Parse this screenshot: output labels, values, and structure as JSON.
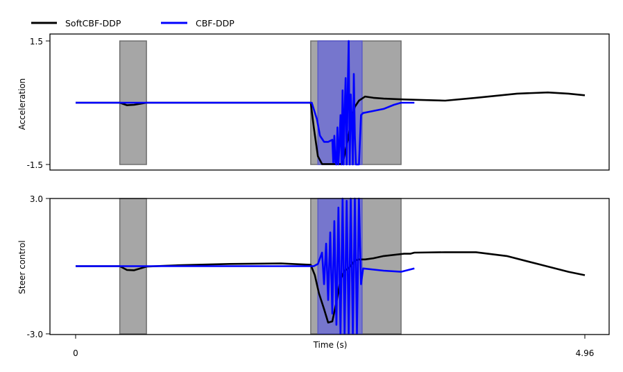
{
  "legend": [
    {
      "label": "SoftCBF-DDP",
      "color": "#000000"
    },
    {
      "label": "CBF-DDP",
      "color": "#0000ff"
    }
  ],
  "colors": {
    "shade_gray": "#a6a6a6",
    "shade_blue": "#6d6dd4",
    "axis": "#000000"
  },
  "chart_data": [
    {
      "type": "line",
      "title": "",
      "xlabel": "",
      "ylabel": "Acceleration",
      "xlim": [
        0,
        4.96
      ],
      "ylim": [
        -1.5,
        1.5
      ],
      "yticks": [
        "1.5",
        "-1.5"
      ],
      "xticks": [],
      "grid": false,
      "legend_position": "top-left, above plot",
      "shaded_regions": [
        {
          "color": "gray",
          "x0": 0.43,
          "x1": 0.69,
          "y0": -1.5,
          "y1": 1.5
        },
        {
          "color": "gray",
          "x0": 2.29,
          "x1": 3.17,
          "y0": -1.5,
          "y1": 1.5
        },
        {
          "color": "blue",
          "x0": 2.36,
          "x1": 2.79,
          "y0": -1.5,
          "y1": 1.5
        }
      ],
      "series": [
        {
          "name": "SoftCBF-DDP",
          "color": "#000000",
          "x": [
            0,
            0.43,
            0.5,
            0.57,
            0.69,
            1.0,
            2.29,
            2.32,
            2.36,
            2.4,
            2.44,
            2.6,
            2.66,
            2.68,
            2.72,
            2.76,
            2.82,
            2.9,
            3.0,
            3.2,
            3.6,
            3.9,
            4.3,
            4.6,
            4.8,
            4.96
          ],
          "y": [
            0,
            0,
            -0.06,
            -0.05,
            0.0,
            0.0,
            0.0,
            -0.6,
            -1.3,
            -1.49,
            -1.49,
            -1.49,
            -0.8,
            -0.45,
            -0.1,
            0.05,
            0.15,
            0.12,
            0.1,
            0.08,
            0.05,
            0.12,
            0.22,
            0.25,
            0.22,
            0.18
          ]
        },
        {
          "name": "CBF-DDP",
          "color": "#0000ff",
          "x": [
            0,
            1.5,
            2.3,
            2.35,
            2.38,
            2.42,
            2.46,
            2.5,
            2.51,
            2.52,
            2.53,
            2.54,
            2.55,
            2.56,
            2.57,
            2.58,
            2.59,
            2.6,
            2.61,
            2.62,
            2.63,
            2.64,
            2.65,
            2.66,
            2.67,
            2.68,
            2.69,
            2.7,
            2.71,
            2.72,
            2.73,
            2.74,
            2.75,
            2.76,
            2.78,
            2.8,
            2.9,
            3.0,
            3.1,
            3.17,
            3.3
          ],
          "y": [
            0,
            0.0,
            0.0,
            -0.4,
            -0.8,
            -0.95,
            -0.95,
            -0.9,
            -1.45,
            -0.8,
            -1.45,
            -1.5,
            -0.6,
            -1.5,
            -1.0,
            -0.3,
            -1.5,
            0.3,
            -1.5,
            -0.2,
            0.6,
            -1.5,
            0.3,
            1.5,
            -1.5,
            0.2,
            -0.4,
            -1.5,
            0.7,
            -0.8,
            -1.5,
            -1.5,
            -1.5,
            -1.5,
            -0.3,
            -0.25,
            -0.2,
            -0.15,
            -0.05,
            0.0,
            0.0
          ]
        }
      ]
    },
    {
      "type": "line",
      "title": "",
      "xlabel": "Time (s)",
      "ylabel": "Steer control",
      "xlim": [
        0,
        4.96
      ],
      "ylim": [
        -3.0,
        3.0
      ],
      "yticks": [
        "3.0",
        "-3.0"
      ],
      "xticks": [
        "0",
        "4.96"
      ],
      "xtick_values": [
        0,
        4.96
      ],
      "grid": false,
      "shaded_regions": [
        {
          "color": "gray",
          "x0": 0.43,
          "x1": 0.69,
          "y0": -3.0,
          "y1": 3.0
        },
        {
          "color": "gray",
          "x0": 2.29,
          "x1": 3.17,
          "y0": -3.0,
          "y1": 3.0
        },
        {
          "color": "blue",
          "x0": 2.36,
          "x1": 2.79,
          "y0": -3.0,
          "y1": 3.0
        }
      ],
      "series": [
        {
          "name": "SoftCBF-DDP",
          "color": "#000000",
          "x": [
            0,
            0.43,
            0.5,
            0.57,
            0.69,
            1.0,
            1.5,
            2.0,
            2.29,
            2.33,
            2.37,
            2.42,
            2.46,
            2.5,
            2.54,
            2.58,
            2.62,
            2.66,
            2.72,
            2.76,
            2.82,
            2.9,
            3.0,
            3.2,
            3.26,
            3.3,
            3.6,
            3.9,
            4.2,
            4.5,
            4.8,
            4.96
          ],
          "y": [
            0,
            0,
            -0.17,
            -0.18,
            -0.02,
            0.04,
            0.1,
            0.12,
            0.06,
            -0.4,
            -1.2,
            -1.9,
            -2.5,
            -2.45,
            -1.6,
            -0.6,
            -0.2,
            -0.1,
            0.25,
            0.3,
            0.3,
            0.35,
            0.45,
            0.55,
            0.55,
            0.6,
            0.62,
            0.62,
            0.45,
            0.1,
            -0.25,
            -0.4
          ]
        },
        {
          "name": "CBF-DDP",
          "color": "#0000ff",
          "x": [
            0,
            1.0,
            2.0,
            2.32,
            2.36,
            2.4,
            2.42,
            2.44,
            2.46,
            2.48,
            2.5,
            2.52,
            2.54,
            2.56,
            2.58,
            2.6,
            2.62,
            2.64,
            2.66,
            2.68,
            2.7,
            2.72,
            2.74,
            2.76,
            2.78,
            2.8,
            3.0,
            3.17,
            3.3
          ],
          "y": [
            0,
            0.0,
            0.0,
            0.0,
            0.1,
            0.6,
            -0.8,
            1.0,
            -1.5,
            1.5,
            -2.1,
            2.0,
            -2.6,
            2.6,
            -3.0,
            3.0,
            -3.0,
            2.9,
            -3.0,
            3.0,
            -3.0,
            3.0,
            -3.0,
            3.0,
            -0.8,
            -0.1,
            -0.2,
            -0.25,
            -0.1
          ]
        }
      ]
    }
  ]
}
